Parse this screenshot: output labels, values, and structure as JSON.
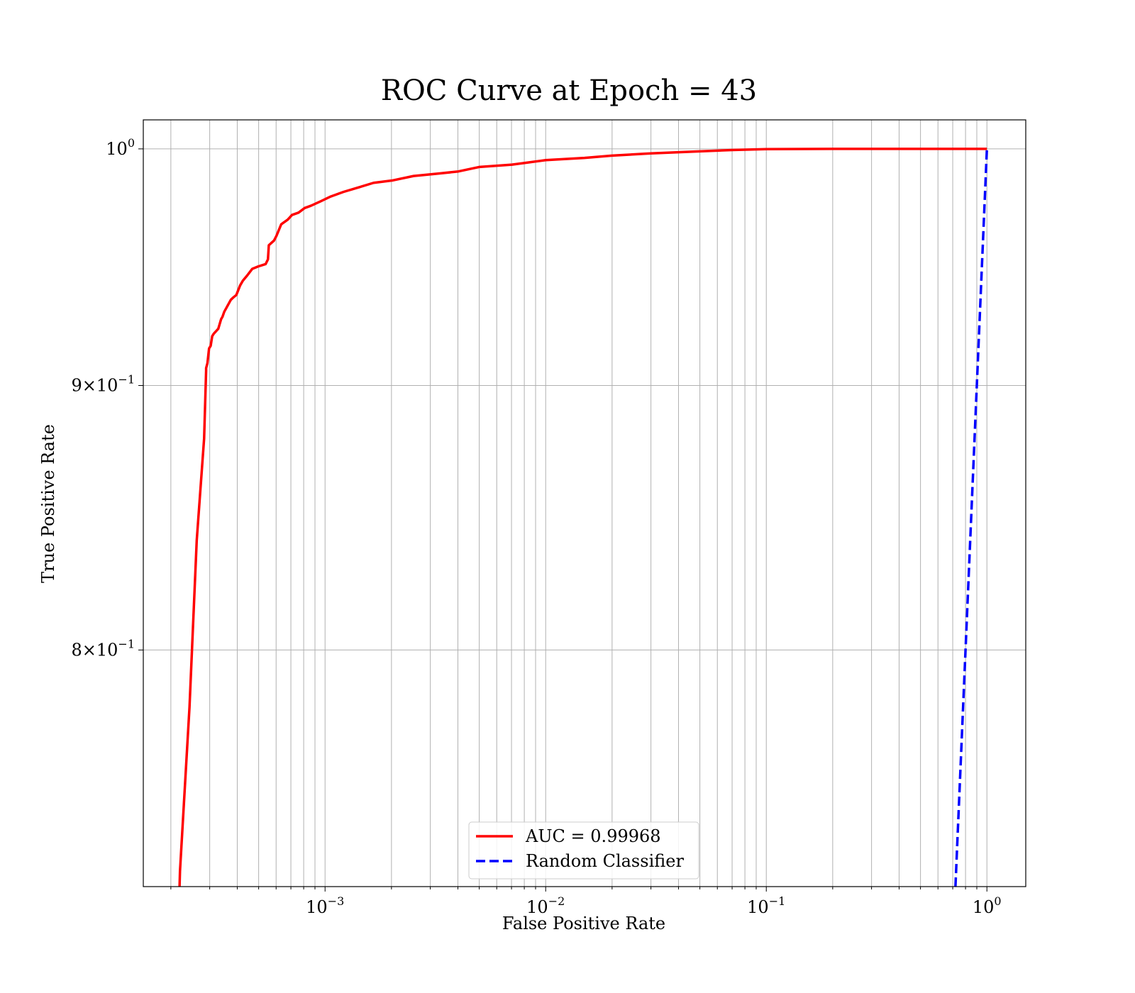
{
  "chart_data": {
    "type": "line",
    "title": "ROC Curve at Epoch = 43",
    "xlabel": "False Positive Rate",
    "ylabel": "True Positive Rate",
    "xscale": "log",
    "yscale": "log",
    "xlim": [
      0.00015,
      1.5
    ],
    "ylim": [
      0.72,
      1.013
    ],
    "grid": "on (major and minor)",
    "legend_position": "lower center",
    "x_ticks": [
      {
        "base": "10",
        "exp": "−3"
      },
      {
        "base": "10",
        "exp": "−2"
      },
      {
        "base": "10",
        "exp": "−1"
      },
      {
        "base": "10",
        "exp": "0"
      }
    ],
    "y_ticks": [
      {
        "value": 1.0,
        "prefix": "",
        "base": "10",
        "exp": "0"
      },
      {
        "value": 0.9,
        "prefix": "9×",
        "base": "10",
        "exp": "−1"
      },
      {
        "value": 0.8,
        "prefix": "8×",
        "base": "10",
        "exp": "−1"
      }
    ],
    "series": [
      {
        "name": "AUC = 0.99968",
        "color": "#ff0000",
        "style": "solid",
        "x": [
          0.000219,
          0.00022,
          0.000243,
          0.000262,
          0.000283,
          0.000289,
          0.000289,
          0.000293,
          0.000298,
          0.000303,
          0.000308,
          0.000313,
          0.000328,
          0.000338,
          0.000343,
          0.000349,
          0.000374,
          0.000384,
          0.000396,
          0.000412,
          0.000424,
          0.000442,
          0.000468,
          0.000498,
          0.000538,
          0.000551,
          0.000556,
          0.000587,
          0.000602,
          0.000633,
          0.000678,
          0.000708,
          0.000758,
          0.000808,
          0.000863,
          0.000959,
          0.00106,
          0.00121,
          0.00142,
          0.00166,
          0.00201,
          0.00252,
          0.00322,
          0.00402,
          0.00502,
          0.00703,
          0.01,
          0.015,
          0.02,
          0.03,
          0.05,
          0.07,
          0.1,
          0.2,
          0.5,
          1.0
        ],
        "y": [
          0.72,
          0.725,
          0.78,
          0.84,
          0.879,
          0.906,
          0.907,
          0.909,
          0.915,
          0.916,
          0.92,
          0.921,
          0.923,
          0.927,
          0.928,
          0.93,
          0.935,
          0.936,
          0.937,
          0.941,
          0.943,
          0.945,
          0.948,
          0.949,
          0.95,
          0.952,
          0.958,
          0.96,
          0.962,
          0.967,
          0.969,
          0.971,
          0.972,
          0.974,
          0.975,
          0.977,
          0.979,
          0.981,
          0.983,
          0.985,
          0.986,
          0.988,
          0.989,
          0.99,
          0.992,
          0.993,
          0.995,
          0.996,
          0.997,
          0.998,
          0.9989,
          0.9995,
          0.9999,
          1.0,
          1.0,
          1.0
        ]
      },
      {
        "name": "Random Classifier",
        "color": "#0000ff",
        "style": "dashed",
        "x": [
          0.72,
          1.0
        ],
        "y": [
          0.72,
          1.0
        ]
      }
    ]
  }
}
